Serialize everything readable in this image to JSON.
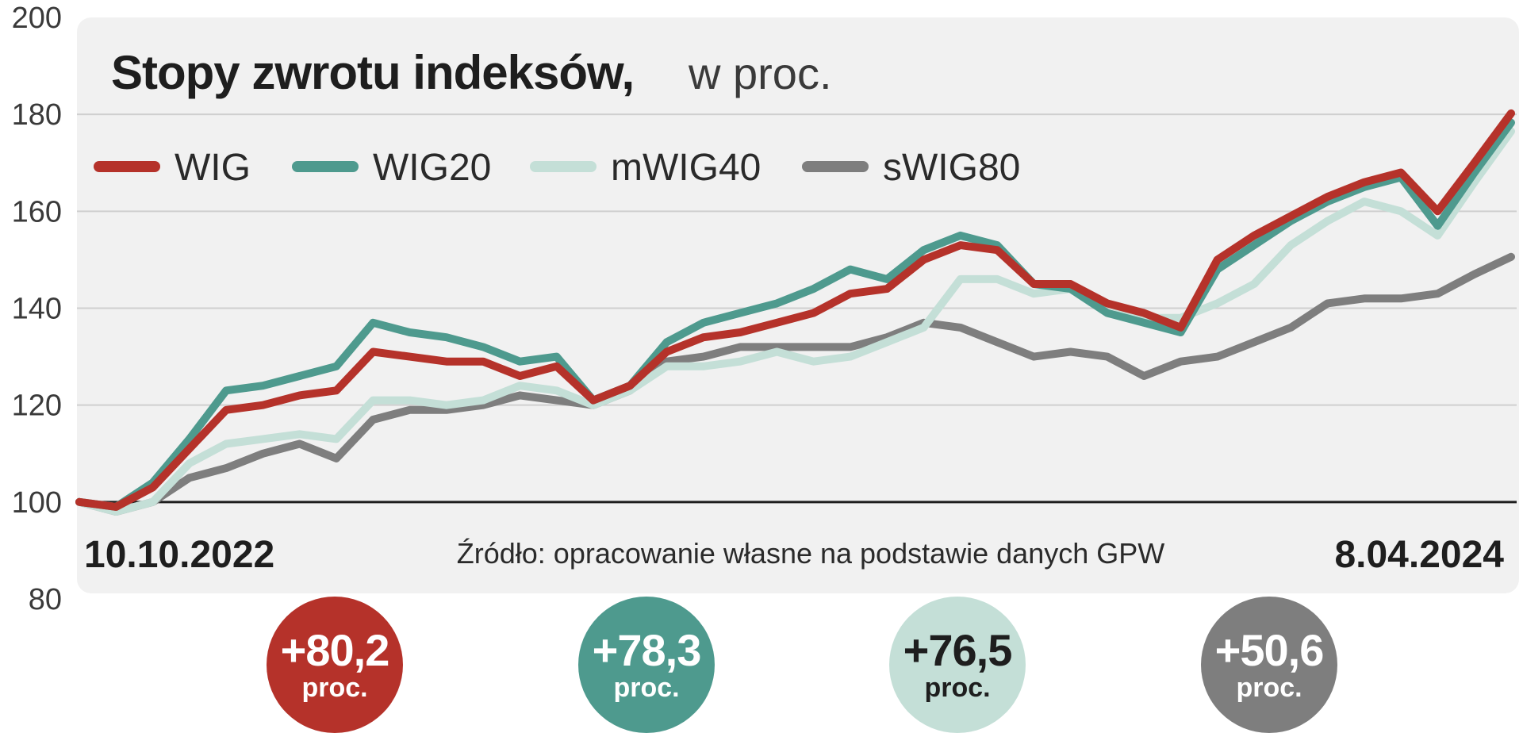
{
  "chart_data": {
    "type": "line",
    "title": "Stopy zwrotu indeksów,",
    "subtitle": "w proc.",
    "xlabel": "",
    "ylabel": "",
    "ylim": [
      80,
      200
    ],
    "yticks": [
      "80",
      "100",
      "120",
      "140",
      "160",
      "180",
      "200"
    ],
    "x_start_label": "10.10.2022",
    "x_end_label": "8.04.2024",
    "source": "Źródło: opracowanie własne na podstawie danych GPW",
    "grid": true,
    "legend_position": "top-left",
    "x": [
      "2022-10-10",
      "2022-10-24",
      "2022-11-07",
      "2022-11-21",
      "2022-12-05",
      "2022-12-19",
      "2023-01-02",
      "2023-01-16",
      "2023-01-30",
      "2023-02-13",
      "2023-02-27",
      "2023-03-13",
      "2023-03-27",
      "2023-04-10",
      "2023-04-24",
      "2023-05-08",
      "2023-05-22",
      "2023-06-05",
      "2023-06-19",
      "2023-07-03",
      "2023-07-17",
      "2023-07-31",
      "2023-08-14",
      "2023-08-28",
      "2023-09-11",
      "2023-09-25",
      "2023-10-09",
      "2023-10-23",
      "2023-11-06",
      "2023-11-20",
      "2023-12-04",
      "2023-12-18",
      "2024-01-01",
      "2024-01-15",
      "2024-01-29",
      "2024-02-12",
      "2024-02-26",
      "2024-03-11",
      "2024-03-25",
      "2024-04-08"
    ],
    "series": [
      {
        "name": "WIG",
        "color": "#b5322a",
        "values": [
          100,
          99,
          103,
          111,
          119,
          120,
          122,
          123,
          131,
          130,
          129,
          129,
          126,
          128,
          121,
          124,
          131,
          134,
          135,
          137,
          139,
          143,
          144,
          150,
          153,
          152,
          145,
          145,
          141,
          139,
          136,
          150,
          155,
          159,
          163,
          166,
          168,
          160,
          170,
          180.2
        ]
      },
      {
        "name": "WIG20",
        "color": "#4e9a8e",
        "values": [
          100,
          99,
          104,
          113,
          123,
          124,
          126,
          128,
          137,
          135,
          134,
          132,
          129,
          130,
          121,
          124,
          133,
          137,
          139,
          141,
          144,
          148,
          146,
          152,
          155,
          153,
          145,
          144,
          139,
          137,
          135,
          148,
          153,
          158,
          162,
          165,
          167,
          157,
          168,
          178.3
        ]
      },
      {
        "name": "mWIG40",
        "color": "#c4dfd7",
        "values": [
          100,
          98,
          100,
          108,
          112,
          113,
          114,
          113,
          121,
          121,
          120,
          121,
          124,
          123,
          120,
          123,
          128,
          128,
          129,
          131,
          129,
          130,
          133,
          136,
          146,
          146,
          143,
          144,
          141,
          138,
          138,
          141,
          145,
          153,
          158,
          162,
          160,
          155,
          166,
          176.5
        ]
      },
      {
        "name": "sWIG80",
        "color": "#7e7e7e",
        "values": [
          100,
          98,
          100,
          105,
          107,
          110,
          112,
          109,
          117,
          119,
          119,
          120,
          122,
          121,
          120,
          123,
          129,
          130,
          132,
          132,
          132,
          132,
          134,
          137,
          136,
          133,
          130,
          131,
          130,
          126,
          129,
          130,
          133,
          136,
          141,
          142,
          142,
          143,
          147,
          150.6
        ]
      }
    ]
  },
  "badges": [
    {
      "value": "+80,2",
      "unit": "proc.",
      "bg": "#b5322a",
      "fg": "#ffffff"
    },
    {
      "value": "+78,3",
      "unit": "proc.",
      "bg": "#4e9a8e",
      "fg": "#ffffff"
    },
    {
      "value": "+76,5",
      "unit": "proc.",
      "bg": "#c4dfd7",
      "fg": "#1e1e1e"
    },
    {
      "value": "+50,6",
      "unit": "proc.",
      "bg": "#7e7e7e",
      "fg": "#ffffff"
    }
  ],
  "colors": {
    "panel_bg": "#f1f1f1",
    "grid": "#cfcfcf",
    "baseline": "#1e1e1e"
  }
}
